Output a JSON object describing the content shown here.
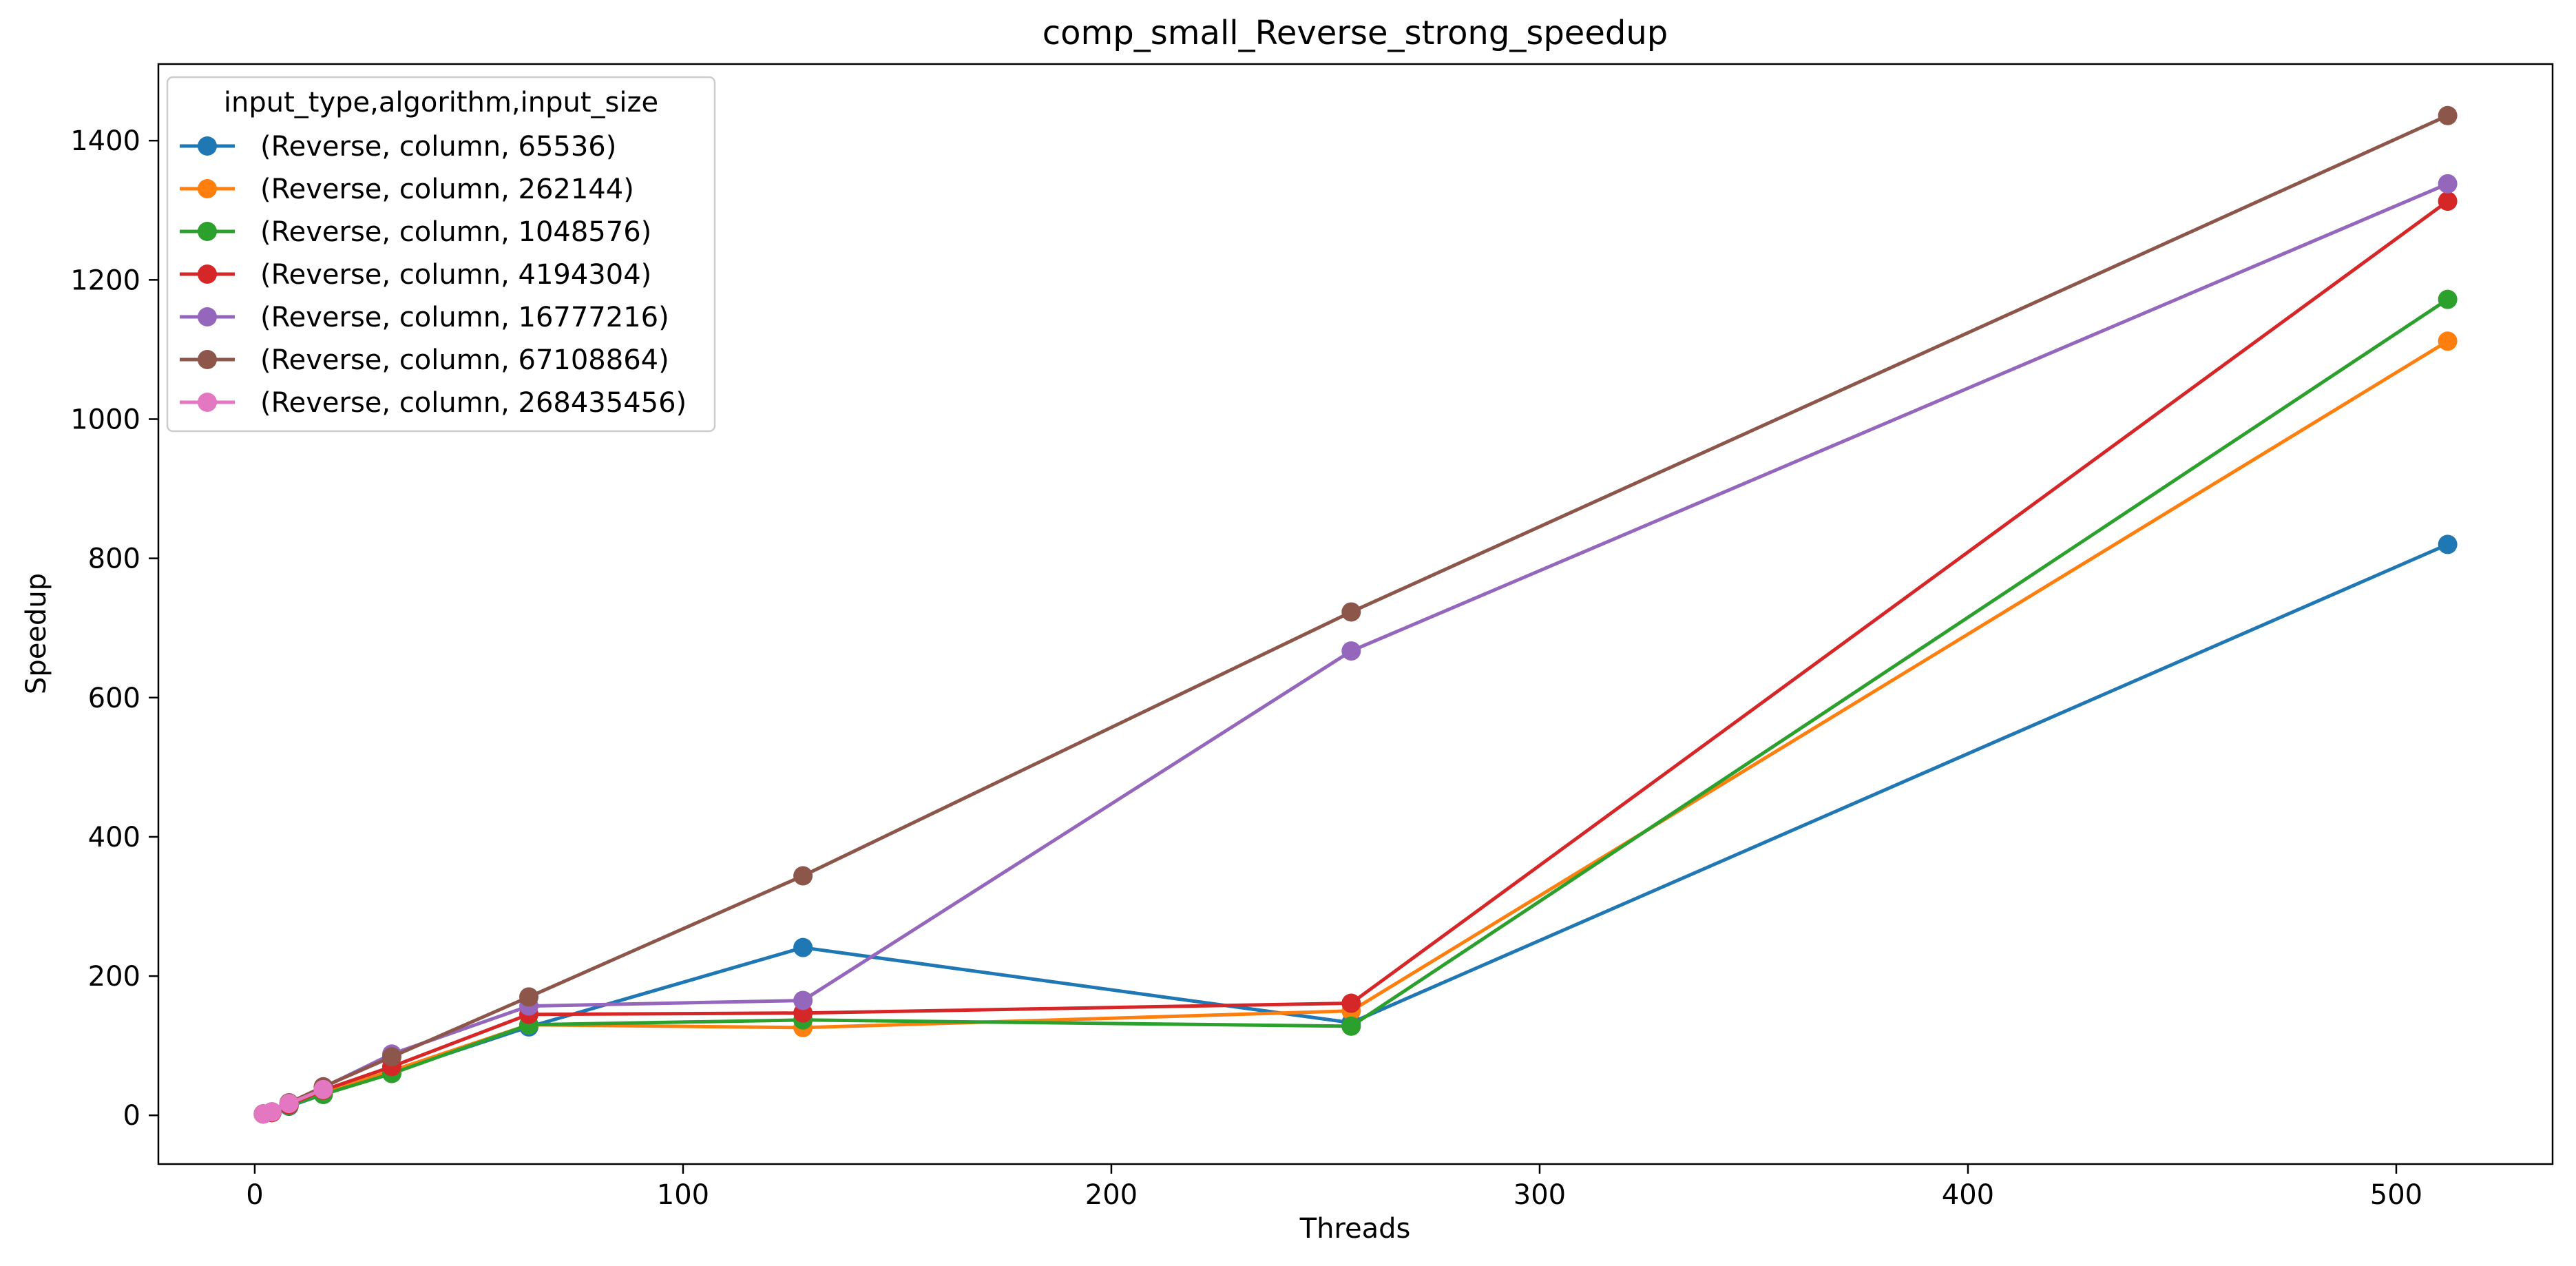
{
  "chart_data": {
    "type": "line",
    "title": "comp_small_Reverse_strong_speedup",
    "xlabel": "Threads",
    "ylabel": "Speedup",
    "xlim": [
      -22.5,
      536.5
    ],
    "ylim": [
      -70,
      1510
    ],
    "xticks": [
      0,
      100,
      200,
      300,
      400,
      500
    ],
    "yticks": [
      0,
      200,
      400,
      600,
      800,
      1000,
      1200,
      1400
    ],
    "grid": false,
    "legend": {
      "title": "input_type,algorithm,input_size",
      "placement": "top-left"
    },
    "series": [
      {
        "name": "(Reverse, column, 65536)",
        "color": "#1f77b4",
        "x": [
          2,
          4,
          8,
          16,
          32,
          64,
          128,
          256,
          512
        ],
        "y": [
          2,
          4,
          13,
          30,
          62,
          127,
          241,
          133,
          820
        ]
      },
      {
        "name": "(Reverse, column, 262144)",
        "color": "#ff7f0e",
        "x": [
          2,
          4,
          8,
          16,
          32,
          64,
          128,
          256,
          512
        ],
        "y": [
          2,
          4,
          14,
          33,
          64,
          130,
          126,
          150,
          1112
        ]
      },
      {
        "name": "(Reverse, column, 1048576)",
        "color": "#2ca02c",
        "x": [
          2,
          4,
          8,
          16,
          32,
          64,
          128,
          256,
          512
        ],
        "y": [
          2,
          4,
          14,
          30,
          60,
          130,
          137,
          128,
          1172
        ]
      },
      {
        "name": "(Reverse, column, 4194304)",
        "color": "#d62728",
        "x": [
          2,
          4,
          8,
          16,
          32,
          64,
          128,
          256,
          512
        ],
        "y": [
          2,
          4,
          15,
          36,
          70,
          145,
          147,
          161,
          1313
        ]
      },
      {
        "name": "(Reverse, column, 16777216)",
        "color": "#9467bd",
        "x": [
          2,
          4,
          8,
          16,
          32,
          64,
          128,
          256,
          512
        ],
        "y": [
          2,
          5,
          17,
          40,
          88,
          157,
          165,
          667,
          1338
        ]
      },
      {
        "name": "(Reverse, column, 67108864)",
        "color": "#8c564b",
        "x": [
          2,
          4,
          8,
          16,
          32,
          64,
          128,
          256,
          512
        ],
        "y": [
          2,
          5,
          18,
          41,
          84,
          170,
          344,
          723,
          1436
        ]
      },
      {
        "name": "(Reverse, column, 268435456)",
        "color": "#e377c2",
        "x": [
          2,
          4,
          8,
          16
        ],
        "y": [
          2,
          5,
          17,
          37
        ]
      }
    ]
  }
}
